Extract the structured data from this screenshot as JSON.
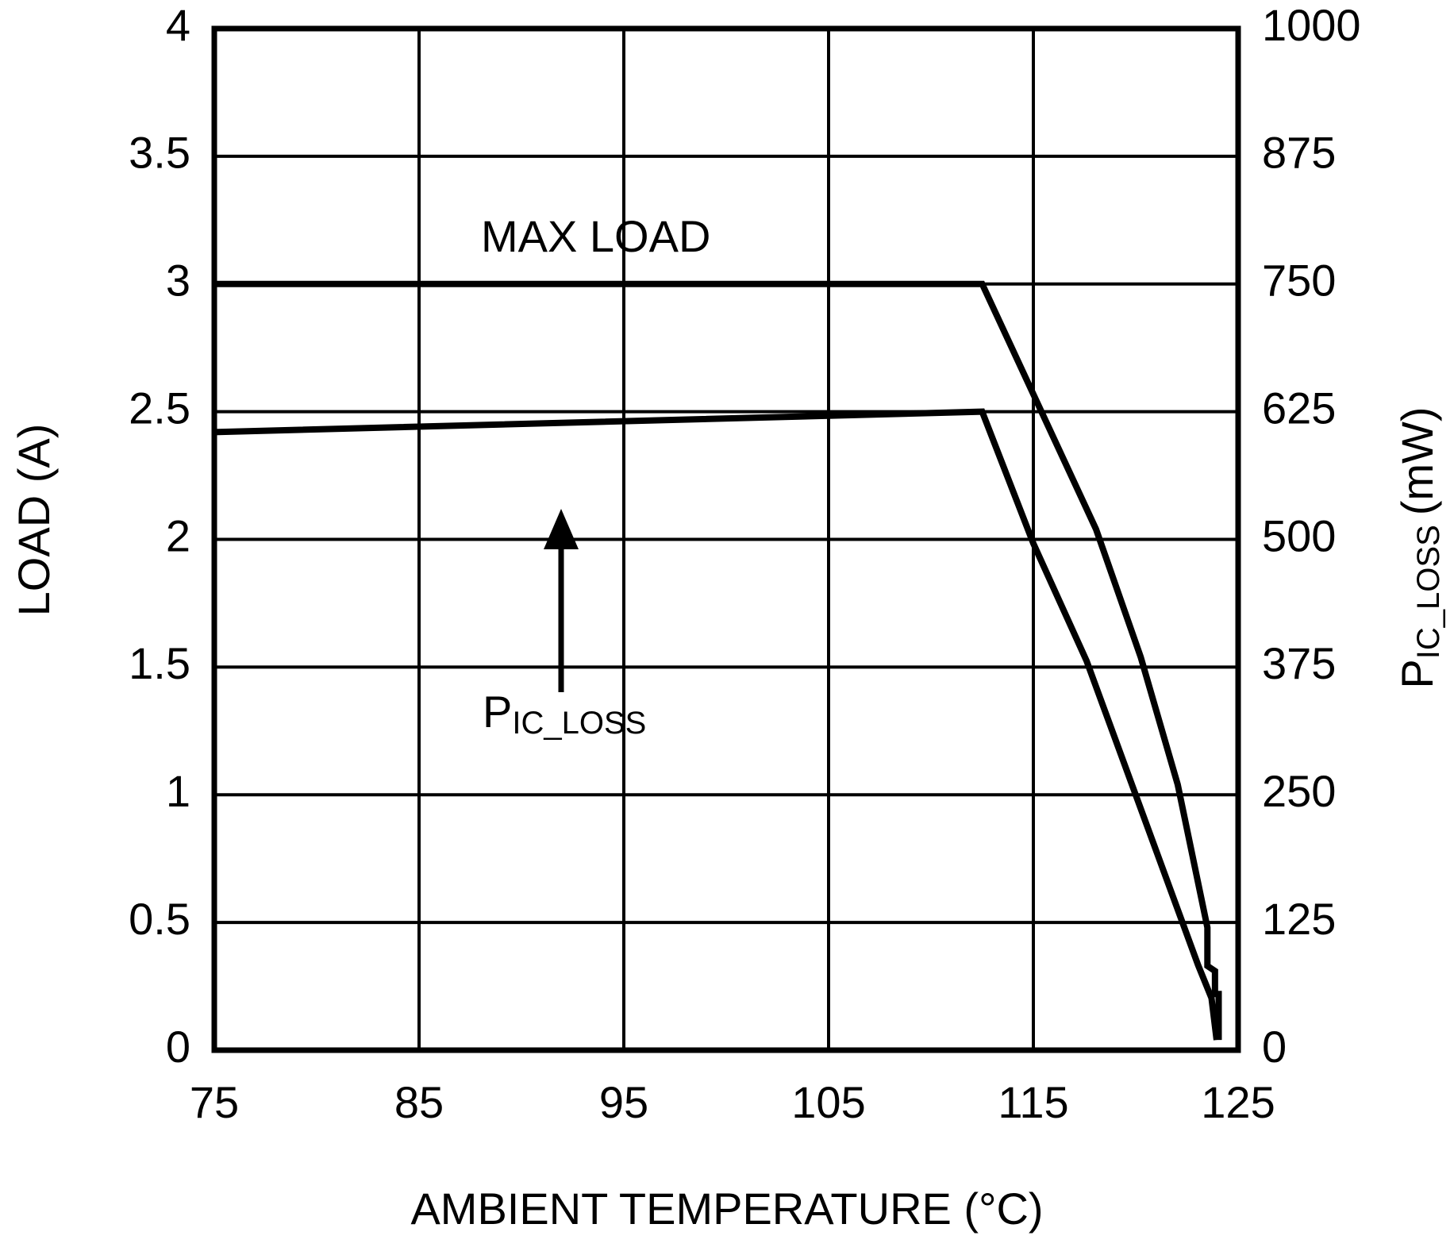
{
  "chart_data": {
    "type": "line",
    "x_label": "AMBIENT TEMPERATURE (°C)",
    "y_label": "LOAD (A)",
    "y2_label": {
      "text": "P",
      "subscript": "IC_LOSS",
      "suffix": "(mW)"
    },
    "annotations": [
      {
        "text": "P",
        "subscript": "IC_LOSS"
      }
    ],
    "xlim": [
      75,
      125
    ],
    "xticks": [
      75,
      85,
      95,
      105,
      115,
      125
    ],
    "ylim": [
      0,
      4
    ],
    "yticks": [
      0,
      0.5,
      1,
      1.5,
      2,
      2.5,
      3,
      3.5,
      4
    ],
    "y2lim": [
      0,
      1000
    ],
    "y2ticks": [
      0,
      125,
      250,
      375,
      500,
      625,
      750,
      875,
      1000
    ],
    "grid": true,
    "series": [
      {
        "name": "MAX LOAD",
        "color": "#000000",
        "x": [
          75,
          112.5,
          118.06,
          120.24,
          122.05,
          123.5,
          123.5,
          123.87,
          123.87,
          124.05,
          124.05
        ],
        "values": [
          3,
          3,
          2.04,
          1.54,
          1.04,
          0.48,
          0.33,
          0.31,
          0.22,
          0.22,
          0.04
        ]
      },
      {
        "color": "#000000",
        "axis": "y2",
        "x": [
          75,
          112.5,
          115,
          117.6,
          123.05,
          123.7,
          123.95
        ],
        "values": [
          605,
          625,
          496,
          381,
          83,
          51,
          10
        ]
      }
    ]
  }
}
